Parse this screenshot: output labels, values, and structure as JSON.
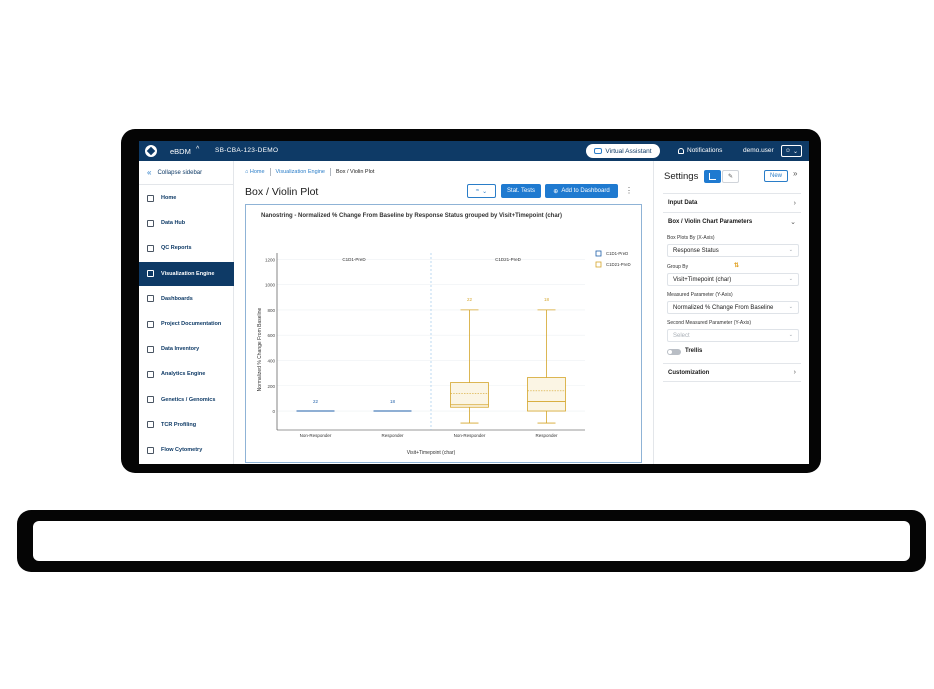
{
  "app": {
    "name": "eBDM",
    "project": "SB-CBA-123-DEMO",
    "virtual_assistant": "Virtual Assistant",
    "notifications": "Notifications",
    "user": "demo.user"
  },
  "sidebar": {
    "collapse": "Collapse sidebar",
    "items": [
      {
        "label": "Home",
        "icon": "home-icon"
      },
      {
        "label": "Data Hub",
        "icon": "database-icon"
      },
      {
        "label": "QC Reports",
        "icon": "document-icon"
      },
      {
        "label": "Visualization Engine",
        "icon": "chart-icon",
        "active": true
      },
      {
        "label": "Dashboards",
        "icon": "dashboard-icon"
      },
      {
        "label": "Project Documentation",
        "icon": "folder-icon"
      },
      {
        "label": "Data Inventory",
        "icon": "table-icon"
      },
      {
        "label": "Analytics Engine",
        "icon": "analytics-icon"
      },
      {
        "label": "Genetics / Genomics",
        "icon": "dna-icon"
      },
      {
        "label": "TCR Profiling",
        "icon": "bar-chart-icon"
      },
      {
        "label": "Flow Cytometry",
        "icon": "line-chart-icon"
      }
    ]
  },
  "breadcrumb": {
    "home": "Home",
    "section": "Visualization Engine",
    "current": "Box / Violin Plot"
  },
  "main": {
    "title": "Box / Violin Plot",
    "stat_tests": "Stat. Tests",
    "add_dashboard": "Add to Dashboard"
  },
  "panel": {
    "title": "Settings",
    "new": "New",
    "input_data": "Input Data",
    "params_title": "Box / Violin Chart Parameters",
    "xaxis_label": "Box Plots By (X-Axis)",
    "xaxis_value": "Response Status",
    "group_label": "Group By",
    "group_value": "Visit+Timepoint (char)",
    "measured_label": "Measured Parameter (Y-Axis)",
    "measured_value": "Normalized % Change From Baseline",
    "second_label": "Second Measured Parameter (Y-Axis)",
    "second_placeholder": "Select",
    "trellis": "Trellis",
    "customization": "Customization"
  },
  "chart_data": {
    "type": "box",
    "title": "Nanostring - Normalized % Change From Baseline by Response Status grouped by Visit+Timepoint (char)",
    "xlabel": "Visit+Timepoint (char)",
    "ylabel": "Normalized % Change From Baseline",
    "ylim": [
      -150,
      1250
    ],
    "yticks": [
      0,
      200,
      400,
      600,
      800,
      1000,
      1200
    ],
    "facets": [
      "C1D1-PreD",
      "C1D21-PreD"
    ],
    "legend": [
      "C1D1-PreD",
      "C1D21-PreD"
    ],
    "legend_position": "top-right",
    "colors": {
      "C1D1-PreD": "#1f5fa8",
      "C1D21-PreD": "#d4a52a"
    },
    "boxes": [
      {
        "facet": "C1D1-PreD",
        "category": "Non-Responder",
        "n": 22,
        "min": 0,
        "q1": 0,
        "median": 0,
        "q3": 0,
        "max": 0
      },
      {
        "facet": "C1D1-PreD",
        "category": "Responder",
        "n": 18,
        "min": 0,
        "q1": 0,
        "median": 0,
        "q3": 0,
        "max": 0
      },
      {
        "facet": "C1D21-PreD",
        "category": "Non-Responder",
        "n": 22,
        "min": -95,
        "q1": 30,
        "median": 50,
        "q3": 225,
        "mean": 140,
        "max": 800
      },
      {
        "facet": "C1D21-PreD",
        "category": "Responder",
        "n": 18,
        "min": -95,
        "q1": 0,
        "median": 75,
        "q3": 265,
        "mean": 160,
        "max": 800
      }
    ]
  }
}
